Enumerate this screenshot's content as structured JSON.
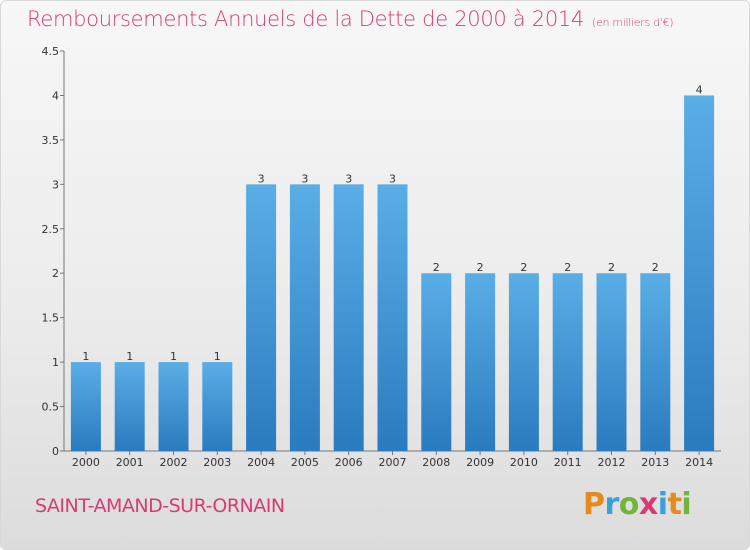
{
  "title": "Remboursements Annuels de la Dette de 2000 à 2014",
  "unit": "(en milliers d'€)",
  "commune": "SAINT-AMAND-SUR-ORNAIN",
  "logo": {
    "letters": [
      "P",
      "r",
      "o",
      "x",
      "i",
      "t",
      "i"
    ],
    "colors": [
      "#e58a1f",
      "#3aa0da",
      "#72b43c",
      "#d63c73",
      "#3aa0da",
      "#e58a1f",
      "#72b43c"
    ]
  },
  "colors": {
    "accent": "#d63c73",
    "bar_top": "#5aaee6",
    "bar_bottom": "#2a7bbf"
  },
  "chart_data": {
    "type": "bar",
    "categories": [
      "2000",
      "2001",
      "2002",
      "2003",
      "2004",
      "2005",
      "2006",
      "2007",
      "2008",
      "2009",
      "2010",
      "2011",
      "2012",
      "2013",
      "2014"
    ],
    "values": [
      1,
      1,
      1,
      1,
      3,
      3,
      3,
      3,
      2,
      2,
      2,
      2,
      2,
      2,
      4
    ],
    "data_labels": [
      "1",
      "1",
      "1",
      "1",
      "3",
      "3",
      "3",
      "3",
      "2",
      "2",
      "2",
      "2",
      "2",
      "2",
      "4"
    ],
    "title": "Remboursements Annuels de la Dette de 2000 à 2014",
    "ylim": [
      0,
      4.5
    ],
    "yticks": [
      0,
      0.5,
      1,
      1.5,
      2,
      2.5,
      3,
      3.5,
      4,
      4.5
    ],
    "ytick_labels": [
      "0",
      "0.5",
      "1",
      "1.5",
      "2",
      "2.5",
      "3",
      "3.5",
      "4",
      "4.5"
    ],
    "grid": false,
    "legend": "none"
  }
}
